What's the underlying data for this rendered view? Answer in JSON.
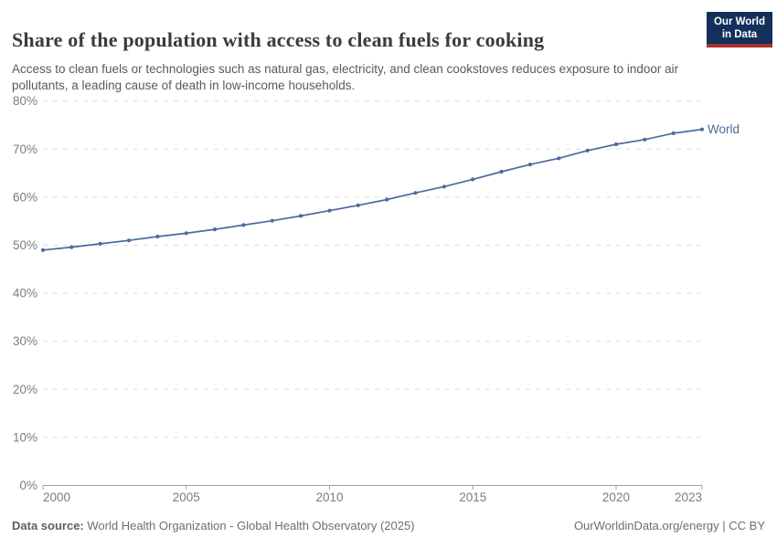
{
  "header": {
    "title": "Share of the population with access to clean fuels for cooking",
    "subtitle": "Access to clean fuels or technologies such as natural gas, electricity, and clean cookstoves reduces exposure to indoor air pollutants, a leading cause of death in low-income households.",
    "logo": {
      "line1": "Our World",
      "line2": "in Data"
    }
  },
  "chart_data": {
    "type": "line",
    "title": "Share of the population with access to clean fuels for cooking",
    "x": [
      2000,
      2001,
      2002,
      2003,
      2004,
      2005,
      2006,
      2007,
      2008,
      2009,
      2010,
      2011,
      2012,
      2013,
      2014,
      2015,
      2016,
      2017,
      2018,
      2019,
      2020,
      2021,
      2022,
      2023
    ],
    "series": [
      {
        "name": "World",
        "color": "#4C6A9C",
        "values": [
          49.0,
          49.6,
          50.3,
          51.0,
          51.8,
          52.5,
          53.3,
          54.2,
          55.1,
          56.1,
          57.2,
          58.3,
          59.5,
          60.9,
          62.2,
          63.7,
          65.3,
          66.8,
          68.1,
          69.7,
          71.0,
          72.0,
          73.3,
          74.1
        ]
      }
    ],
    "xlabel": "",
    "ylabel": "",
    "ylim": [
      0,
      80
    ],
    "yticks": [
      0,
      10,
      20,
      30,
      40,
      50,
      60,
      70,
      80
    ],
    "ytick_suffix": "%",
    "xticks": [
      2000,
      2005,
      2010,
      2015,
      2020,
      2023
    ],
    "grid": "horizontal-dashed",
    "legend_position": "end-of-line",
    "end_label": "World"
  },
  "colors": {
    "line": "#4C6A9C",
    "title_text": "#3b3b3b",
    "subtitle_text": "#5a5a5a",
    "axis_text": "#7d7d7d",
    "gridline": "#dedede",
    "axis_line": "#9e9e9e",
    "logo_bg": "#12305a",
    "logo_stripe": "#a62f2f",
    "footer_text": "#6e6e6e"
  },
  "footer": {
    "source_label": "Data source:",
    "source_text": "World Health Organization - Global Health Observatory (2025)",
    "credit": "OurWorldinData.org/energy | CC BY"
  }
}
